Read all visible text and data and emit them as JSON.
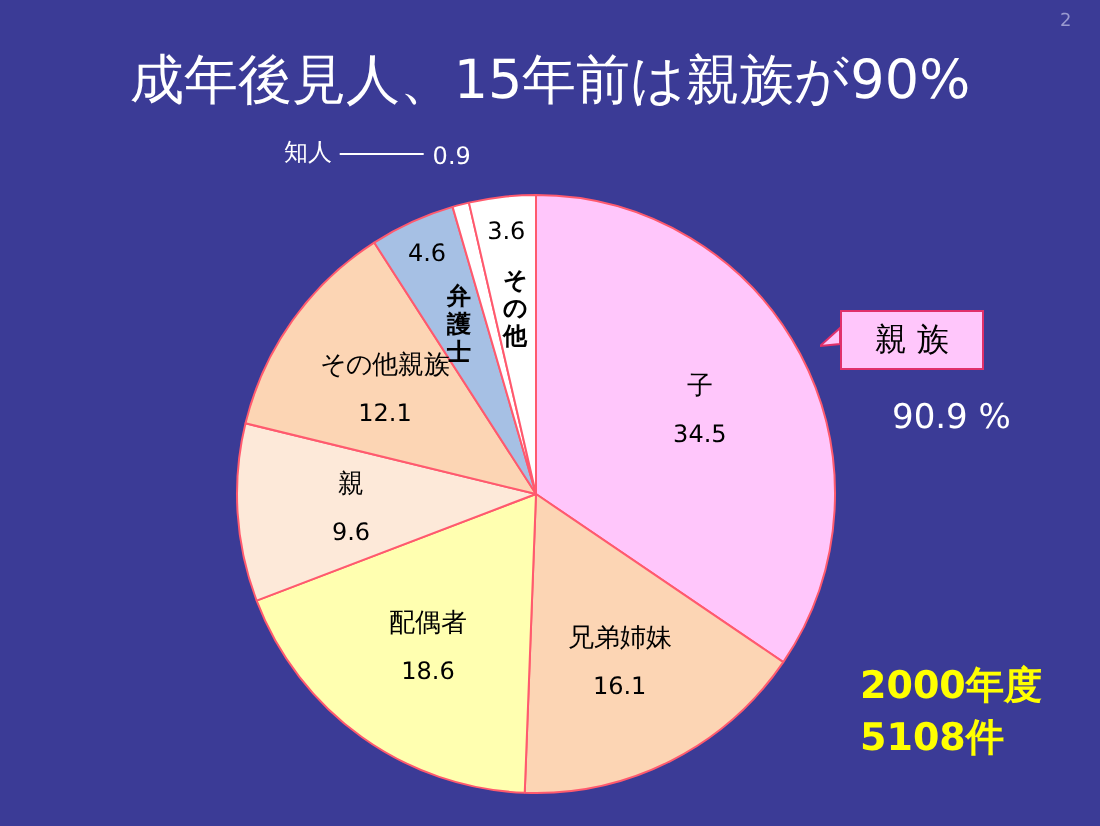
{
  "chart_data": {
    "type": "pie",
    "title": "成年後見人、15年前は親族が90%",
    "categories": [
      "子",
      "兄弟姉妹",
      "配偶者",
      "親",
      "その他親族",
      "弁護士",
      "知人",
      "その他"
    ],
    "values": [
      34.5,
      16.1,
      18.6,
      9.6,
      12.1,
      4.6,
      0.9,
      3.6
    ],
    "colors": [
      "#ffc6fb",
      "#fcd5b4",
      "#ffffb0",
      "#fde9d9",
      "#fcd5b4",
      "#a6c0e4",
      "#ffffff",
      "#ffffff"
    ],
    "data_labels": true,
    "annotations": [
      "親 族",
      "90.9 %",
      "2000年度",
      "5108件",
      "2"
    ]
  }
}
